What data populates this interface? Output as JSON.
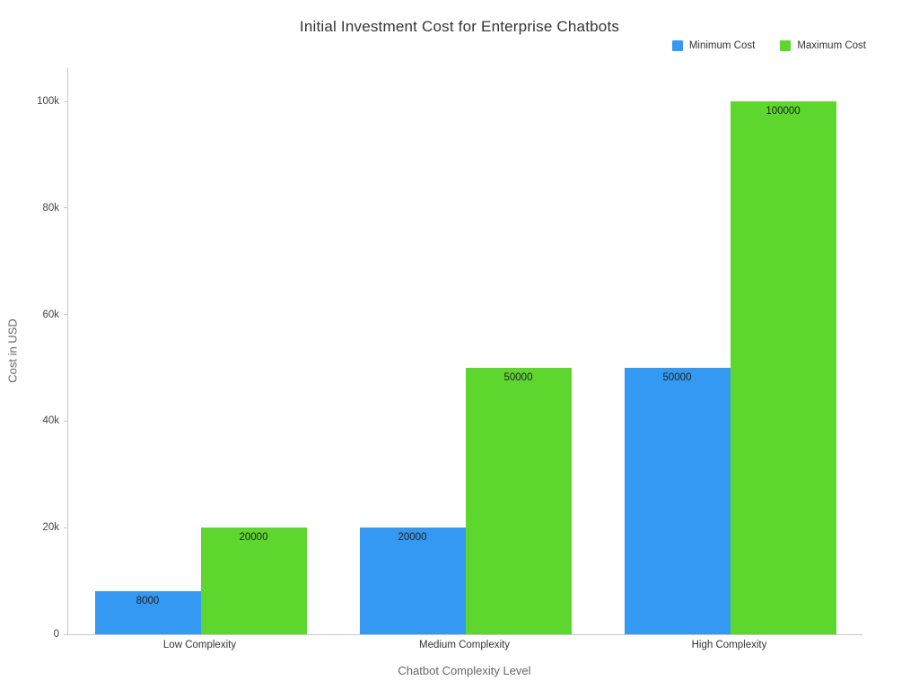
{
  "chart_data": {
    "type": "bar",
    "title": "Initial Investment Cost for Enterprise Chatbots",
    "xlabel": "Chatbot Complexity Level",
    "ylabel": "Cost in USD",
    "categories": [
      "Low Complexity",
      "Medium Complexity",
      "High Complexity"
    ],
    "series": [
      {
        "name": "Minimum Cost",
        "color": "#3399f3",
        "values": [
          8000,
          20000,
          50000
        ]
      },
      {
        "name": "Maximum Cost",
        "color": "#5dd72e",
        "values": [
          20000,
          50000,
          100000
        ]
      }
    ],
    "bar_value_labels": [
      "8000",
      "20000",
      "50000",
      "20000",
      "50000",
      "100000"
    ],
    "ylim": [
      0,
      106400
    ],
    "yticks": [
      {
        "value": 0,
        "label": "0"
      },
      {
        "value": 20000,
        "label": "20k"
      },
      {
        "value": 40000,
        "label": "40k"
      },
      {
        "value": 60000,
        "label": "60k"
      },
      {
        "value": 80000,
        "label": "80k"
      },
      {
        "value": 100000,
        "label": "100k"
      }
    ],
    "grid": false,
    "legend_position": "top-right",
    "background": "#ffffff"
  }
}
